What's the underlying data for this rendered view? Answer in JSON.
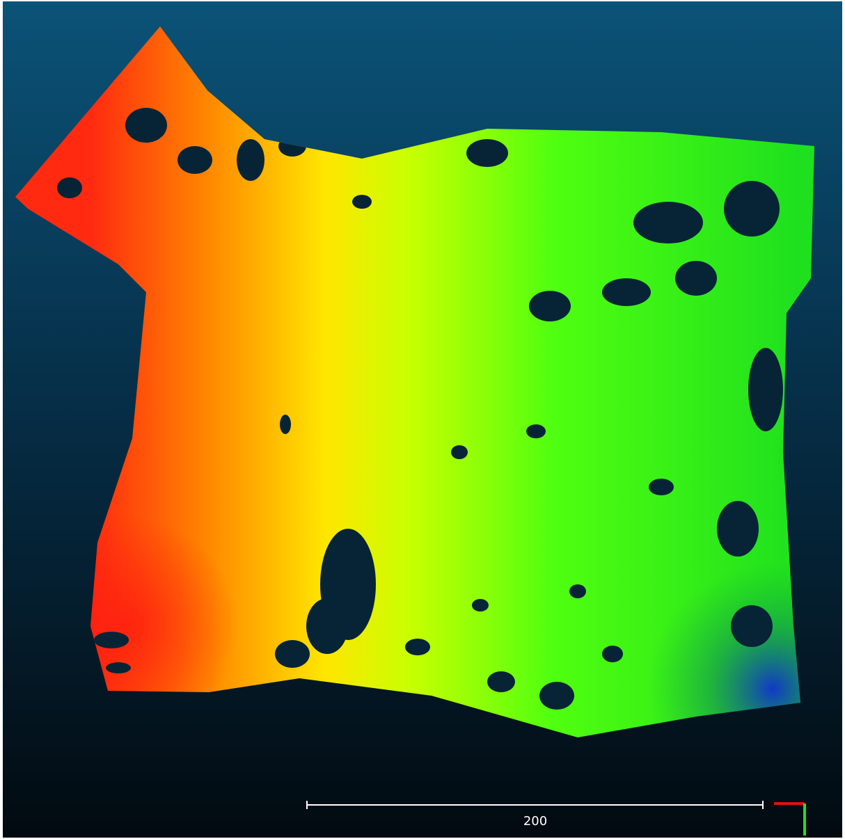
{
  "scale_bar": {
    "label": "200"
  }
}
